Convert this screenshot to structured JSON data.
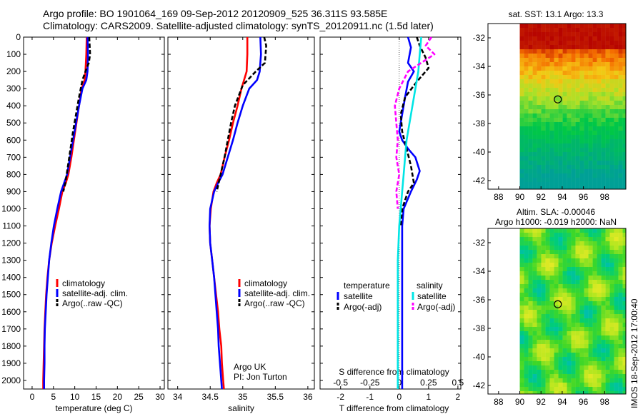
{
  "title_line1": "Argo profile: BO 1901064_169 09-Sep-2012 20120909_525 36.311S 93.585E",
  "title_line2": "Climatology: CARS2009. Satellite-adjusted climatology: synTS_20120911.nc (1.5d later)",
  "colors": {
    "climatology": "#ff0000",
    "satellite": "#0000ff",
    "argo": "#000000",
    "sal_satellite": "#00e5e5",
    "sal_argo": "#ff00ff"
  },
  "chart_data": [
    {
      "id": "temperature",
      "type": "line",
      "xlabel": "temperature (deg C)",
      "ylabel": "",
      "xlim": [
        -2,
        31
      ],
      "ylim": [
        2050,
        0
      ],
      "xticks": [
        0,
        5,
        10,
        15,
        20,
        25,
        30
      ],
      "yticks": [
        0,
        100,
        200,
        300,
        400,
        500,
        600,
        700,
        800,
        900,
        1000,
        1100,
        1200,
        1300,
        1400,
        1500,
        1600,
        1700,
        1800,
        1900,
        2000
      ],
      "legend": [
        "climatology",
        "satellite-adj. clim.",
        "Argo(..raw -QC)"
      ],
      "series": [
        {
          "name": "climatology",
          "color": "#ff0000",
          "dash": "",
          "x": [
            12.8,
            12.7,
            12.5,
            12.3,
            11.6,
            11.0,
            10.4,
            9.8,
            9.2,
            8.5,
            7.9,
            7.1,
            6.3,
            5.4,
            4.6,
            4.0,
            3.6,
            3.3,
            3.1,
            2.9,
            2.8,
            2.7,
            2.6,
            2.6
          ],
          "y": [
            0,
            100,
            200,
            250,
            300,
            400,
            500,
            600,
            700,
            800,
            850,
            900,
            1000,
            1100,
            1200,
            1300,
            1400,
            1500,
            1600,
            1700,
            1800,
            1900,
            2000,
            2050
          ]
        },
        {
          "name": "satellite-adj. clim.",
          "color": "#0000ff",
          "dash": "",
          "x": [
            13.0,
            13.1,
            13.0,
            12.7,
            11.8,
            11.0,
            10.3,
            9.6,
            8.9,
            8.2,
            7.5,
            6.8,
            5.9,
            5.1,
            4.5,
            4.0,
            3.7,
            3.4,
            3.2,
            3.0,
            2.9,
            2.9,
            2.8,
            2.8
          ],
          "y": [
            0,
            100,
            200,
            250,
            300,
            400,
            500,
            600,
            700,
            800,
            850,
            900,
            1000,
            1100,
            1200,
            1300,
            1400,
            1500,
            1600,
            1700,
            1800,
            1900,
            2000,
            2050
          ]
        },
        {
          "name": "Argo(..raw -QC)",
          "color": "#000000",
          "dash": "6,3",
          "x": [
            13.4,
            13.5,
            13.6,
            13.3,
            12.8,
            11.8,
            11.0,
            10.3,
            9.6,
            9.0,
            8.4,
            7.8,
            7.3
          ],
          "y": [
            0,
            50,
            100,
            150,
            180,
            250,
            350,
            450,
            550,
            650,
            750,
            850,
            900
          ]
        }
      ],
      "annotation_lines": []
    },
    {
      "id": "salinity",
      "type": "line",
      "xlabel": "salinity",
      "ylabel": "",
      "xlim": [
        33.85,
        36.1
      ],
      "ylim": [
        2050,
        0
      ],
      "xticks": [
        34,
        34.5,
        35,
        35.5,
        36
      ],
      "legend": [
        "climatology",
        "satellite-adj. clim.",
        "Argo(..raw -QC)"
      ],
      "series": [
        {
          "name": "climatology",
          "color": "#ff0000",
          "dash": "",
          "x": [
            35.07,
            35.07,
            35.06,
            35.02,
            34.98,
            34.92,
            34.85,
            34.79,
            34.72,
            34.66,
            34.6,
            34.55,
            34.51,
            34.49,
            34.5,
            34.53,
            34.56,
            34.59,
            34.62,
            34.64,
            34.67,
            34.68,
            34.7,
            34.71
          ],
          "y": [
            0,
            100,
            200,
            250,
            300,
            400,
            500,
            600,
            700,
            800,
            850,
            900,
            1000,
            1100,
            1200,
            1300,
            1400,
            1500,
            1600,
            1700,
            1800,
            1900,
            2000,
            2050
          ]
        },
        {
          "name": "satellite-adj. clim.",
          "color": "#0000ff",
          "dash": "",
          "x": [
            35.27,
            35.28,
            35.26,
            35.22,
            35.1,
            35.0,
            34.92,
            34.85,
            34.77,
            34.69,
            34.62,
            34.56,
            34.5,
            34.49,
            34.5,
            34.53,
            34.56,
            34.58,
            34.6,
            34.62,
            34.63,
            34.65,
            34.67,
            34.68
          ],
          "y": [
            0,
            100,
            200,
            250,
            300,
            400,
            500,
            600,
            700,
            800,
            850,
            900,
            1000,
            1100,
            1200,
            1300,
            1400,
            1500,
            1600,
            1700,
            1800,
            1900,
            2000,
            2050
          ]
        },
        {
          "name": "Argo(..raw -QC)",
          "color": "#000000",
          "dash": "6,3",
          "x": [
            35.33,
            35.36,
            35.34,
            35.2,
            35.0,
            34.88,
            34.82,
            34.77,
            34.72,
            34.66,
            34.6
          ],
          "y": [
            0,
            50,
            150,
            200,
            280,
            400,
            500,
            600,
            700,
            800,
            900
          ]
        }
      ],
      "annotation_lines": [
        "Argo UK",
        "PI: Jon Turton"
      ]
    },
    {
      "id": "difference",
      "type": "line",
      "xlabel": "T difference from climatology",
      "top_axis_label": "S difference from climatology",
      "xlim": [
        -2.7,
        2.1
      ],
      "ylim": [
        2050,
        0
      ],
      "xticks": [
        -2,
        -1,
        0,
        1,
        2
      ],
      "top_ticks": [
        "-0.5",
        "-0.25",
        "0",
        "0.25",
        "0.5"
      ],
      "legend_headers": [
        "temperature",
        "salinity"
      ],
      "legend_left": [
        "satellite",
        "Argo(-adj)"
      ],
      "legend_right": [
        "satellite",
        "Argo(-adj)"
      ],
      "series": [
        {
          "name": "temperature satellite",
          "color": "#0000ff",
          "dash": "",
          "x": [
            0.3,
            0.4,
            0.3,
            0.5,
            0.3,
            0.2,
            0.1,
            0.0,
            0.1,
            0.3,
            0.55,
            0.7,
            0.6,
            0.4,
            0.15,
            0.1,
            0.1,
            0.1,
            0.1,
            0.1,
            0.1,
            0.1,
            0.1
          ],
          "y": [
            0,
            60,
            150,
            200,
            260,
            350,
            450,
            550,
            600,
            650,
            700,
            780,
            830,
            900,
            1000,
            1100,
            1200,
            1400,
            1600,
            1800,
            1900,
            2000,
            2050
          ]
        },
        {
          "name": "temperature Argo(-adj)",
          "color": "#000000",
          "dash": "6,3",
          "x": [
            0.6,
            0.7,
            0.9,
            1.0,
            0.6,
            0.2,
            0.05,
            0.1,
            0.25,
            0.4,
            0.5,
            0.3,
            0.1,
            0.05
          ],
          "y": [
            0,
            50,
            120,
            180,
            260,
            350,
            450,
            550,
            650,
            750,
            850,
            900,
            1000,
            1100
          ]
        },
        {
          "name": "salinity satellite",
          "color": "#00e5e5",
          "dash": "",
          "x": [
            0.75,
            0.7,
            0.65,
            0.55,
            0.45,
            0.35,
            0.25,
            0.2,
            0.15,
            0.1,
            0.05,
            0.0,
            -0.05,
            -0.05,
            -0.05,
            -0.05,
            -0.05
          ],
          "y": [
            0,
            100,
            200,
            300,
            400,
            500,
            600,
            700,
            800,
            900,
            1000,
            1100,
            1300,
            1500,
            1700,
            1900,
            2050
          ]
        },
        {
          "name": "salinity Argo(-adj)",
          "color": "#ff00ff",
          "dash": "6,3",
          "x": [
            1.1,
            0.9,
            1.2,
            0.3,
            0.0,
            -0.15,
            -0.1,
            -0.05,
            -0.1,
            0.0,
            -0.1,
            -0.05
          ],
          "y": [
            0,
            50,
            100,
            200,
            300,
            400,
            500,
            600,
            700,
            800,
            900,
            1000
          ]
        }
      ],
      "annotation_lines": []
    }
  ],
  "map_sst": {
    "title": "sat. SST: 13.1  Argo: 13.3",
    "xticks": [
      "88",
      "90",
      "92",
      "94",
      "96",
      "98"
    ],
    "yticks": [
      "-32",
      "-34",
      "-36",
      "-38",
      "-40",
      "-42"
    ],
    "argo_position": {
      "lon": 93.585,
      "lat": -36.311
    }
  },
  "map_sla": {
    "title_line1": "Altim. SLA: -0.00046",
    "title_line2": "Argo h1000: -0.019  h2000: NaN",
    "xticks": [
      "88",
      "90",
      "92",
      "94",
      "96",
      "98"
    ],
    "yticks": [
      "-32",
      "-34",
      "-36",
      "-38",
      "-40",
      "-42"
    ],
    "argo_position": {
      "lon": 93.585,
      "lat": -36.311
    }
  },
  "side_stamp": "IMOS 18-Sep-2012 17:00:40"
}
